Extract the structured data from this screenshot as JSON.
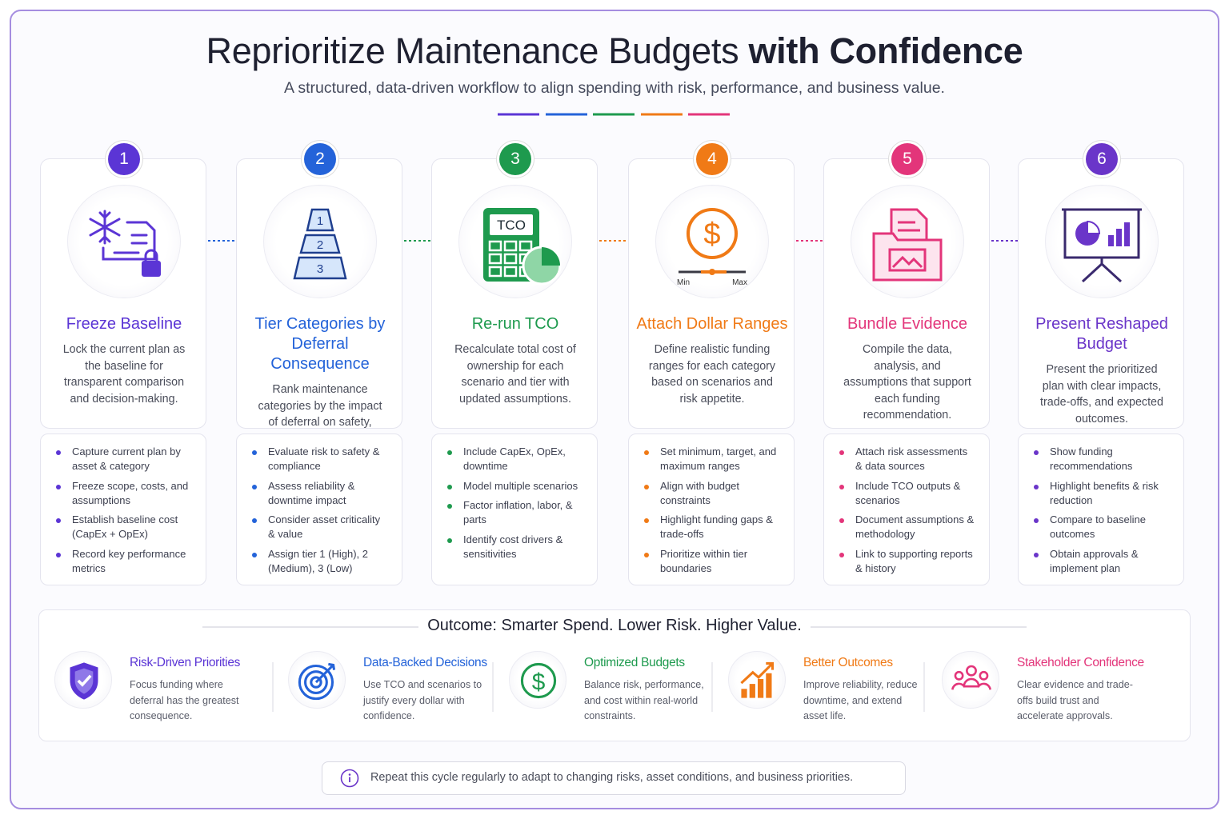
{
  "header": {
    "title_light": "Reprioritize Maintenance Budgets",
    "title_bold": "with Confidence",
    "subtitle": "A structured, data-driven workflow to align spending with risk, performance, and business value."
  },
  "steps": [
    {
      "number": "1",
      "title": "Freeze Baseline",
      "description": "Lock the current plan as the baseline for transparent comparison and decision-making.",
      "bullets": [
        "Capture current plan by asset & category",
        "Freeze scope, costs, and assumptions",
        "Establish baseline cost (CapEx + OpEx)",
        "Record key performance metrics"
      ]
    },
    {
      "number": "2",
      "title": "Tier Categories by Deferral Consequence",
      "description": "Rank maintenance categories by the impact of deferral on safety, reliability, and value.",
      "icon_labels": [
        "1",
        "2",
        "3"
      ],
      "bullets": [
        "Evaluate risk to safety & compliance",
        "Assess reliability & downtime impact",
        "Consider asset criticality & value",
        "Assign tier 1 (High), 2 (Medium), 3 (Low)"
      ]
    },
    {
      "number": "3",
      "title": "Re-run TCO",
      "description": "Recalculate total cost of ownership for each scenario and tier with updated assumptions.",
      "icon_labels": [
        "TCO"
      ],
      "bullets": [
        "Include CapEx, OpEx, downtime",
        "Model multiple scenarios",
        "Factor inflation, labor, & parts",
        "Identify cost drivers & sensitivities"
      ]
    },
    {
      "number": "4",
      "title": "Attach Dollar Ranges",
      "description": "Define realistic funding ranges for each category based on scenarios and risk appetite.",
      "icon_labels": [
        "$",
        "Min",
        "Max"
      ],
      "bullets": [
        "Set minimum, target, and maximum ranges",
        "Align with budget constraints",
        "Highlight funding gaps & trade-offs",
        "Prioritize within tier boundaries"
      ]
    },
    {
      "number": "5",
      "title": "Bundle Evidence",
      "description": "Compile the data, analysis, and assumptions that support each funding recommendation.",
      "bullets": [
        "Attach risk assessments & data sources",
        "Include TCO outputs & scenarios",
        "Document assumptions & methodology",
        "Link to supporting reports & history"
      ]
    },
    {
      "number": "6",
      "title": "Present Reshaped Budget",
      "description": "Present the prioritized plan with clear impacts, trade-offs, and expected outcomes.",
      "bullets": [
        "Show funding recommendations",
        "Highlight benefits & risk reduction",
        "Compare to baseline outcomes",
        "Obtain approvals & implement plan"
      ]
    }
  ],
  "outcome": {
    "title": "Outcome: Smarter Spend. Lower Risk. Higher Value.",
    "items": [
      {
        "title": "Risk-Driven Priorities",
        "description": "Focus funding where deferral has the greatest consequence."
      },
      {
        "title": "Data-Backed Decisions",
        "description": "Use TCO and scenarios to justify every dollar with confidence."
      },
      {
        "title": "Optimized Budgets",
        "description": "Balance risk, performance, and cost within real-world constraints.",
        "icon_label": "$"
      },
      {
        "title": "Better Outcomes",
        "description": "Improve reliability, reduce downtime, and extend asset life."
      },
      {
        "title": "Stakeholder Confidence",
        "description": "Clear evidence and trade-offs build trust and accelerate approvals."
      }
    ]
  },
  "footer": {
    "note": "Repeat this cycle regularly to adapt to changing risks, asset conditions, and business priorities."
  }
}
